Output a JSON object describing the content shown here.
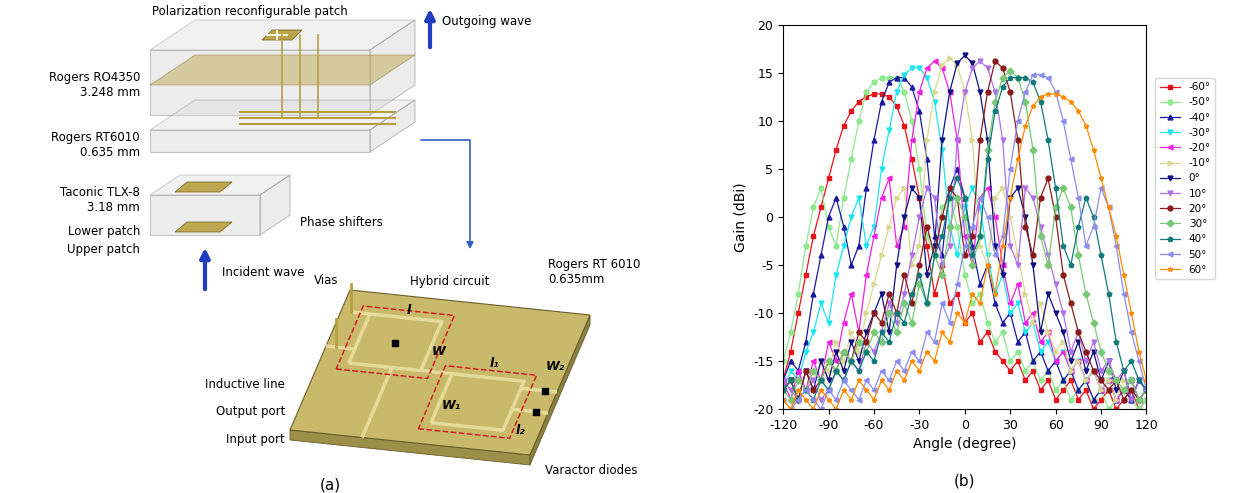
{
  "diagram": {
    "polarization_patch": "Polarization reconfigurable patch",
    "outgoing_wave": "Outgoing wave",
    "layer_ro4350": "Rogers RO4350\n3.248 mm",
    "layer_rt6010": "Rogers RT6010\n0.635 mm",
    "layer_tlx8": "Taconic TLX-8\n3.18 mm",
    "lower_patch": "Lower patch",
    "upper_patch": "Upper patch",
    "incident_wave": "Incident wave",
    "phase_shifters": "Phase shifters",
    "vias": "Vias",
    "hybrid_circuit": "Hybrid circuit",
    "board": "Rogers RT 6010\n0.635mm",
    "inductive_line": "Inductive line",
    "output_port": "Output port",
    "input_port": "Input port",
    "varactor_diodes": "Varactor diodes",
    "dim_l": "l",
    "dim_W": "W",
    "dim_l1": "l₁",
    "dim_W1": "W₁",
    "dim_W2": "W₂",
    "dim_l2": "l₂"
  },
  "panel_captions": {
    "a": "(a)",
    "b": "(b)"
  },
  "chart_data": {
    "type": "line",
    "x_label": "Angle (degree)",
    "y_label": "Gain (dBi)",
    "xlim": [
      -120,
      120
    ],
    "xticks": [
      -120,
      -90,
      -60,
      -30,
      0,
      30,
      60,
      90,
      120
    ],
    "ylim": [
      -20,
      20
    ],
    "yticks": [
      -20,
      -15,
      -10,
      -5,
      0,
      5,
      10,
      15,
      20
    ],
    "grid": false,
    "legend": "right",
    "x": [
      -120,
      -115,
      -110,
      -105,
      -100,
      -95,
      -90,
      -85,
      -80,
      -75,
      -70,
      -65,
      -60,
      -55,
      -50,
      -45,
      -40,
      -35,
      -30,
      -25,
      -20,
      -15,
      -10,
      -5,
      0,
      5,
      10,
      15,
      20,
      25,
      30,
      35,
      40,
      45,
      50,
      55,
      60,
      65,
      70,
      75,
      80,
      85,
      90,
      95,
      100,
      105,
      110,
      115,
      120
    ],
    "series": [
      {
        "name": "-60°",
        "color": "#e8141c",
        "marker": "square",
        "line_style": "solid",
        "values": [
          -17,
          -14,
          -10,
          -6,
          -2,
          1,
          4,
          7,
          9.5,
          11,
          12,
          12.5,
          12.8,
          12.8,
          12.5,
          11.5,
          9.5,
          6,
          2,
          -3,
          -8,
          -5,
          -9,
          -8,
          -11,
          -10,
          -13,
          -12,
          -14,
          -15,
          -16,
          -15,
          -17,
          -16,
          -18,
          -17,
          -19,
          -18,
          -17,
          -19,
          -18,
          -20,
          -19,
          -18,
          -20,
          -19,
          -18,
          -20,
          -19
        ]
      },
      {
        "name": "-50°",
        "color": "#8ee88e",
        "marker": "circle",
        "line_style": "solid",
        "values": [
          -15,
          -12,
          -8,
          -3,
          1,
          3,
          -1,
          -3,
          2,
          6,
          10,
          13,
          14,
          14.5,
          14.5,
          14.5,
          13,
          10,
          5,
          -2,
          -4,
          1,
          2,
          -1,
          -6,
          -9,
          -8,
          -11,
          -13,
          -12,
          -15,
          -14,
          -16,
          -15,
          -17,
          -16,
          -18,
          -17,
          -19,
          -18,
          -17,
          -19,
          -18,
          -20,
          -19,
          -18,
          -19,
          -20,
          -19
        ]
      },
      {
        "name": "-40°",
        "color": "#1a1aa0",
        "marker": "triangle_up",
        "line_style": "solid",
        "values": [
          -17,
          -15,
          -16,
          -13,
          -8,
          -4,
          0,
          2,
          -1,
          -5,
          -3,
          3,
          8,
          12,
          14,
          14.5,
          14.5,
          13.5,
          11,
          6,
          -2,
          -4,
          3,
          5,
          2,
          -3,
          -7,
          -5,
          -9,
          -11,
          -10,
          -13,
          -12,
          -15,
          -14,
          -16,
          -15,
          -17,
          -16,
          -18,
          -17,
          -19,
          -18,
          -17,
          -19,
          -18,
          -19,
          -17,
          -18
        ]
      },
      {
        "name": "-30°",
        "color": "#19e6f0",
        "marker": "triangle_down",
        "line_style": "solid",
        "values": [
          -18,
          -16,
          -17,
          -14,
          -12,
          -9,
          -11,
          -6,
          -3,
          0,
          2,
          -3,
          -1,
          5,
          9,
          13,
          14.8,
          15.5,
          15.5,
          14.5,
          12,
          7,
          -1,
          -4,
          1,
          3,
          1,
          -4,
          -8,
          -6,
          -10,
          -9,
          -12,
          -11,
          -14,
          -13,
          -15,
          -14,
          -16,
          -15,
          -17,
          -16,
          -18,
          -17,
          -19,
          -18,
          -17,
          -19,
          -18
        ]
      },
      {
        "name": "-20°",
        "color": "#f020e0",
        "marker": "triangle_left",
        "line_style": "solid",
        "values": [
          -17,
          -19,
          -16,
          -18,
          -15,
          -17,
          -13,
          -15,
          -11,
          -8,
          -12,
          -6,
          -2,
          2,
          4,
          -3,
          -1,
          8,
          13,
          15.5,
          16.2,
          15.5,
          13,
          8,
          -2,
          -5,
          2,
          3,
          0,
          -5,
          -9,
          -7,
          -11,
          -10,
          -13,
          -12,
          -15,
          -14,
          -16,
          -15,
          -17,
          -16,
          -18,
          -17,
          -19,
          -18,
          -17,
          -19,
          -18
        ]
      },
      {
        "name": "-10°",
        "color": "#d8d890",
        "marker": "triangle_right",
        "line_style": "solid",
        "values": [
          -18,
          -17,
          -19,
          -16,
          -17,
          -15,
          -16,
          -13,
          -15,
          -12,
          -14,
          -10,
          -7,
          -4,
          -1,
          2,
          3,
          -5,
          -3,
          8,
          13,
          15.8,
          16.5,
          15.8,
          13,
          8,
          -3,
          -5,
          2,
          3,
          0,
          -4,
          -8,
          -11,
          -9,
          -12,
          -14,
          -13,
          -16,
          -15,
          -17,
          -16,
          -18,
          -17,
          -19,
          -17,
          -18,
          -19,
          -18
        ]
      },
      {
        "name": "0°",
        "color": "#101080",
        "marker": "triangle_down",
        "line_style": "solid",
        "values": [
          -18,
          -17,
          -19,
          -16,
          -18,
          -15,
          -17,
          -14,
          -16,
          -13,
          -15,
          -12,
          -10,
          -8,
          -12,
          -5,
          0,
          3,
          2,
          -6,
          -3,
          8,
          13,
          16,
          16.8,
          16,
          13,
          8,
          -3,
          -6,
          2,
          3,
          0,
          -5,
          -12,
          -8,
          -10,
          -12,
          -15,
          -13,
          -16,
          -14,
          -17,
          -15,
          -18,
          -16,
          -19,
          -17,
          -18
        ]
      },
      {
        "name": "10°",
        "color": "#b070e8",
        "marker": "triangle_down",
        "line_style": "solid",
        "values": [
          -17,
          -18,
          -19,
          -18,
          -17,
          -19,
          -18,
          -16,
          -17,
          -15,
          -16,
          -13,
          -14,
          -12,
          -9,
          -11,
          -8,
          -4,
          0,
          3,
          2,
          -5,
          -3,
          8,
          13,
          15.5,
          16.2,
          15.5,
          13,
          8,
          -3,
          -5,
          3,
          2,
          -1,
          -4,
          -7,
          -10,
          -14,
          -12,
          -15,
          -13,
          -16,
          -15,
          -17,
          -16,
          -19,
          -17,
          -18
        ]
      },
      {
        "name": "20°",
        "color": "#8b1a1a",
        "marker": "circle",
        "line_style": "solid",
        "values": [
          -18,
          -17,
          -19,
          -16,
          -18,
          -17,
          -15,
          -16,
          -14,
          -15,
          -12,
          -13,
          -10,
          -11,
          -8,
          -10,
          -6,
          -9,
          -5,
          -1,
          -4,
          0,
          3,
          2,
          -4,
          -2,
          8,
          13,
          16.2,
          15.5,
          13,
          8,
          -1,
          -4,
          2,
          4,
          0,
          -6,
          -9,
          -12,
          -14,
          -16,
          -17,
          -18,
          -17,
          -19,
          -18,
          -19,
          -18
        ]
      },
      {
        "name": "30°",
        "color": "#78c878",
        "marker": "diamond",
        "line_style": "solid",
        "values": [
          -18,
          -19,
          -17,
          -18,
          -16,
          -17,
          -15,
          -16,
          -14,
          -15,
          -13,
          -14,
          -12,
          -13,
          -10,
          -12,
          -9,
          -11,
          -7,
          -9,
          -4,
          -6,
          -1,
          2,
          0,
          -5,
          -2,
          7,
          12,
          14.5,
          15.2,
          14.5,
          12,
          7,
          -2,
          -5,
          1,
          3,
          1,
          -4,
          -8,
          -11,
          -14,
          -16,
          -17,
          -18,
          -17,
          -19,
          -18
        ]
      },
      {
        "name": "40°",
        "color": "#117a7a",
        "marker": "pentagon",
        "line_style": "solid",
        "values": [
          -18,
          -17,
          -19,
          -18,
          -19,
          -17,
          -18,
          -16,
          -17,
          -15,
          -16,
          -14,
          -15,
          -12,
          -13,
          -10,
          -11,
          -8,
          -6,
          -9,
          -4,
          -2,
          2,
          4,
          2,
          -4,
          -2,
          6,
          11,
          13.5,
          14.5,
          14.5,
          14.5,
          14,
          12,
          8,
          3,
          -3,
          -5,
          -1,
          2,
          0,
          -4,
          -8,
          -13,
          -16,
          -15,
          -17,
          -18
        ]
      },
      {
        "name": "50°",
        "color": "#8c8cf0",
        "marker": "triangle_left",
        "line_style": "solid",
        "values": [
          -19,
          -20,
          -19,
          -18,
          -19,
          -20,
          -18,
          -19,
          -17,
          -18,
          -19,
          -17,
          -18,
          -16,
          -17,
          -15,
          -16,
          -14,
          -15,
          -12,
          -13,
          -9,
          -11,
          -7,
          -3,
          -1,
          2,
          0,
          -4,
          -2,
          5,
          10,
          13,
          14.8,
          14.8,
          14.5,
          13,
          10,
          6,
          2,
          -3,
          -1,
          3,
          1,
          -3,
          -8,
          -12,
          -15,
          -18
        ]
      },
      {
        "name": "60°",
        "color": "#ff8c00",
        "marker": "star",
        "line_style": "solid",
        "values": [
          -19,
          -20,
          -18,
          -19,
          -20,
          -18,
          -19,
          -20,
          -18,
          -19,
          -17,
          -18,
          -19,
          -17,
          -18,
          -16,
          -17,
          -15,
          -16,
          -14,
          -15,
          -12,
          -13,
          -10,
          -11,
          -8,
          -9,
          -5,
          -8,
          -3,
          2,
          6,
          9.5,
          11.5,
          12.5,
          12.8,
          12.8,
          12.5,
          12,
          11,
          9.5,
          7,
          4,
          1,
          -2,
          -6,
          -10,
          -14,
          -17
        ]
      }
    ]
  }
}
